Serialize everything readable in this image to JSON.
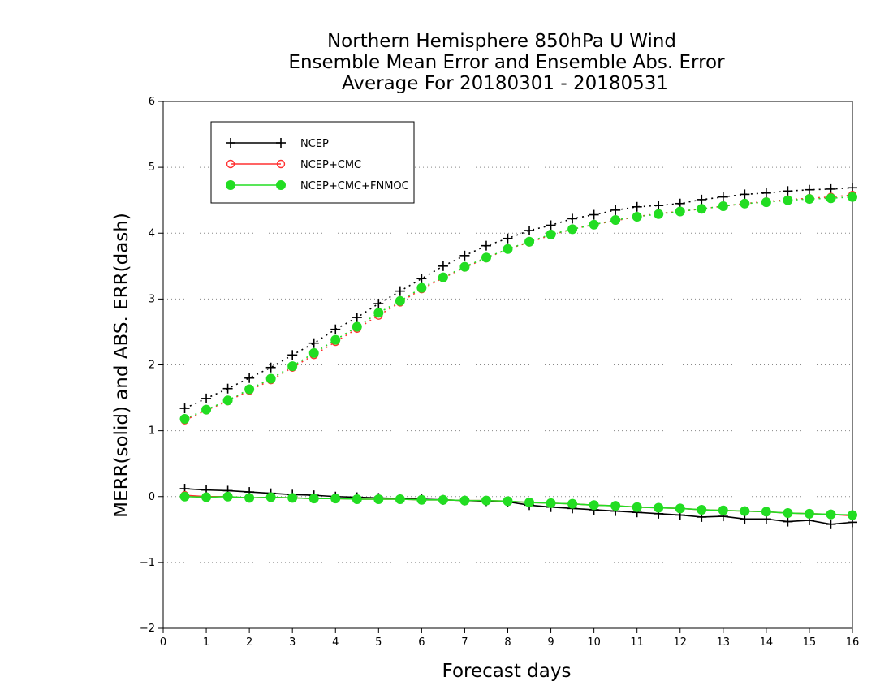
{
  "chart_data": {
    "type": "line",
    "title_lines": [
      "Northern Hemisphere 850hPa U Wind",
      "Ensemble Mean Error and Ensemble Abs. Error",
      "Average For 20180301 - 20180531"
    ],
    "xlabel": "Forecast days",
    "ylabel": "MERR(solid) and ABS. ERR(dash)",
    "xlim": [
      0,
      16
    ],
    "ylim": [
      -2,
      6
    ],
    "xticks": [
      "0",
      "1",
      "2",
      "3",
      "4",
      "5",
      "6",
      "7",
      "8",
      "9",
      "10",
      "11",
      "12",
      "13",
      "14",
      "15",
      "16"
    ],
    "yticks": [
      "6",
      "5",
      "4",
      "3",
      "2",
      "1",
      "0",
      "−1",
      "−2"
    ],
    "grid": "horizontal dotted",
    "legend_position": "top-left",
    "x": [
      0.5,
      1,
      1.5,
      2,
      2.5,
      3,
      3.5,
      4,
      4.5,
      5,
      5.5,
      6,
      6.5,
      7,
      7.5,
      8,
      8.5,
      9,
      9.5,
      10,
      10.5,
      11,
      11.5,
      12,
      12.5,
      13,
      13.5,
      14,
      14.5,
      15,
      15.5,
      16
    ],
    "series": [
      {
        "name": "NCEP",
        "color": "#000000",
        "marker": "plus",
        "merr": [
          0.12,
          0.1,
          0.09,
          0.07,
          0.05,
          0.03,
          0.02,
          0.0,
          -0.01,
          -0.02,
          -0.03,
          -0.04,
          -0.05,
          -0.06,
          -0.07,
          -0.08,
          -0.13,
          -0.16,
          -0.18,
          -0.2,
          -0.22,
          -0.24,
          -0.26,
          -0.28,
          -0.31,
          -0.3,
          -0.34,
          -0.34,
          -0.38,
          -0.36,
          -0.42,
          -0.39
        ],
        "abs_err": [
          1.34,
          1.49,
          1.64,
          1.8,
          1.96,
          2.15,
          2.33,
          2.54,
          2.72,
          2.93,
          3.12,
          3.31,
          3.5,
          3.66,
          3.81,
          3.92,
          4.04,
          4.12,
          4.22,
          4.28,
          4.35,
          4.4,
          4.42,
          4.45,
          4.51,
          4.55,
          4.59,
          4.61,
          4.64,
          4.66,
          4.67,
          4.69
        ]
      },
      {
        "name": "NCEP+CMC",
        "color": "#ff3030",
        "marker": "open-circle",
        "merr": [
          0.02,
          0.0,
          0.0,
          -0.02,
          -0.01,
          -0.02,
          -0.03,
          -0.03,
          -0.04,
          -0.04,
          -0.04,
          -0.05,
          -0.05,
          -0.06,
          -0.06,
          -0.07,
          -0.09,
          -0.1,
          -0.11,
          -0.13,
          -0.14,
          -0.16,
          -0.17,
          -0.18,
          -0.2,
          -0.21,
          -0.22,
          -0.23,
          -0.25,
          -0.26,
          -0.27,
          -0.29
        ],
        "abs_err": [
          1.16,
          1.31,
          1.45,
          1.61,
          1.77,
          1.96,
          2.15,
          2.35,
          2.55,
          2.75,
          2.95,
          3.15,
          3.32,
          3.48,
          3.62,
          3.76,
          3.86,
          3.97,
          4.06,
          4.13,
          4.19,
          4.25,
          4.3,
          4.33,
          4.37,
          4.41,
          4.45,
          4.48,
          4.51,
          4.53,
          4.55,
          4.58
        ]
      },
      {
        "name": "NCEP+CMC+FNMOC",
        "color": "#22dd22",
        "marker": "filled-circle",
        "merr": [
          0.0,
          -0.01,
          0.0,
          -0.02,
          -0.01,
          -0.02,
          -0.03,
          -0.03,
          -0.04,
          -0.04,
          -0.04,
          -0.05,
          -0.05,
          -0.06,
          -0.06,
          -0.07,
          -0.09,
          -0.1,
          -0.11,
          -0.13,
          -0.14,
          -0.16,
          -0.17,
          -0.18,
          -0.2,
          -0.21,
          -0.22,
          -0.23,
          -0.25,
          -0.26,
          -0.27,
          -0.28
        ],
        "abs_err": [
          1.18,
          1.32,
          1.46,
          1.63,
          1.79,
          1.98,
          2.18,
          2.38,
          2.58,
          2.79,
          2.97,
          3.17,
          3.33,
          3.49,
          3.63,
          3.76,
          3.87,
          3.98,
          4.06,
          4.13,
          4.2,
          4.25,
          4.29,
          4.33,
          4.37,
          4.41,
          4.45,
          4.47,
          4.5,
          4.52,
          4.53,
          4.55
        ]
      }
    ]
  }
}
